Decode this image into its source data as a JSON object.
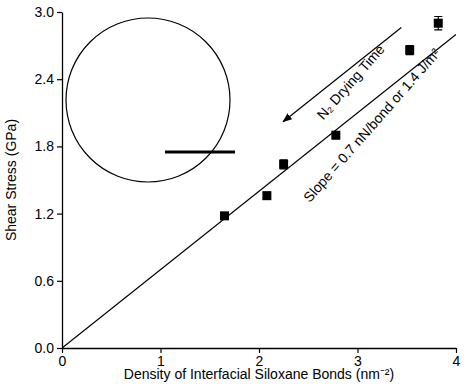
{
  "chart_data": {
    "type": "scatter",
    "x_label": "Density of Interfacial Siloxane Bonds (nm⁻²)",
    "y_label": "Shear Stress (GPa)",
    "x": [
      1.65,
      2.08,
      2.25,
      2.78,
      3.53,
      3.82
    ],
    "values": [
      1.18,
      1.36,
      1.64,
      1.9,
      2.66,
      2.9
    ],
    "error": [
      0.03,
      0.03,
      0.04,
      0.03,
      0.04,
      0.06
    ],
    "fit_line": {
      "x": [
        0,
        4
      ],
      "y": [
        0,
        2.8
      ]
    },
    "marker": "square",
    "color": "#000000",
    "xlim": [
      0,
      4
    ],
    "xticks": [
      0,
      1,
      2,
      3,
      4
    ],
    "ylim": [
      0,
      3
    ],
    "yticks": [
      {
        "value": 0,
        "label": "0.0"
      },
      0.6,
      1.2,
      1.8,
      2.4,
      {
        "value": 3,
        "label": "3.0"
      }
    ],
    "annotations": [
      "N₂ Drying Time",
      "Slope = 0.7 nN/bond or 1.4 J/m²"
    ],
    "grid": false
  }
}
